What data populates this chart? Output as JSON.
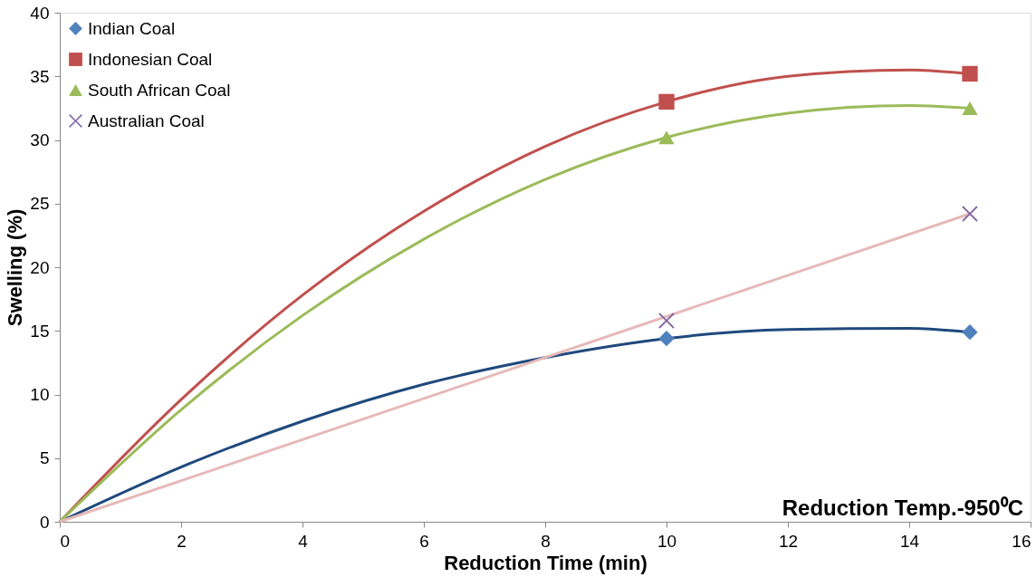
{
  "chart_data": {
    "type": "scatter",
    "xlabel": "Reduction Time (min)",
    "ylabel": "Swelling (%)",
    "xlim": [
      0,
      16
    ],
    "xticks": [
      0,
      2,
      4,
      6,
      8,
      10,
      12,
      14,
      16
    ],
    "ylim": [
      0,
      40
    ],
    "yticks": [
      0,
      5,
      10,
      15,
      20,
      25,
      30,
      35,
      40
    ],
    "grid": false,
    "legend": "top left",
    "annotations": [
      "Reduction Temp.-950⁰C"
    ],
    "x": [
      10,
      15
    ],
    "series": [
      {
        "name": "Indian Coal",
        "color": "#4f81bd",
        "marker": "diamond",
        "values": [
          14.4,
          14.9
        ]
      },
      {
        "name": "Indonesian Coal",
        "color": "#c0504d",
        "marker": "square",
        "values": [
          33.0,
          35.2
        ]
      },
      {
        "name": "South African Coal",
        "color": "#9bbb59",
        "marker": "triangle",
        "values": [
          30.2,
          32.5
        ]
      },
      {
        "name": "Australian Coal",
        "color": "#8064a2",
        "marker": "cross",
        "values": [
          15.8,
          24.2
        ]
      },
      {
        "type": "line",
        "color": "#1f497d",
        "x": [
          0,
          2,
          4,
          6,
          8,
          10,
          12,
          14,
          15
        ],
        "values": [
          0,
          4.3,
          7.9,
          10.8,
          12.9,
          14.4,
          15.1,
          15.2,
          14.9
        ]
      },
      {
        "type": "line",
        "color": "#c0504d",
        "x": [
          0,
          2,
          4,
          6,
          8,
          10,
          12,
          14,
          15
        ],
        "values": [
          0,
          9.6,
          17.8,
          24.4,
          29.5,
          33.0,
          35.0,
          35.5,
          35.2
        ]
      },
      {
        "type": "line",
        "color": "#9bbb59",
        "x": [
          0,
          2,
          4,
          6,
          8,
          10,
          12,
          14,
          15
        ],
        "values": [
          0,
          8.8,
          16.2,
          22.2,
          26.9,
          30.2,
          32.1,
          32.7,
          32.5
        ]
      },
      {
        "type": "line",
        "color": "#e6b9b8",
        "x": [
          0,
          15
        ],
        "values": [
          0,
          24.2
        ]
      }
    ]
  }
}
